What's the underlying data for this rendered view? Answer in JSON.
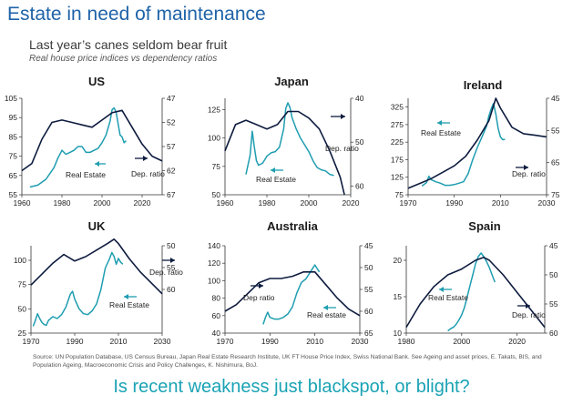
{
  "header": {
    "headline": "Estate in need of maintenance",
    "subtitle": "Last year’s canes seldom bear fruit",
    "subsubtitle": "Real house price indices vs dependency ratios"
  },
  "colors": {
    "real_estate": "#1e9db0",
    "dep_ratio": "#0d1b3e",
    "headline": "#1f63a8",
    "bottom": "#1aa3b5"
  },
  "chart_data": [
    {
      "type": "line",
      "title": "US",
      "xlim": [
        1960,
        2030
      ],
      "xticks": [
        "1960",
        "1980",
        "2000",
        "2020"
      ],
      "ylim_left": [
        55,
        105
      ],
      "yticks_left": [
        "55",
        "65",
        "75",
        "85",
        "95",
        "105"
      ],
      "ylim_right": [
        47,
        67
      ],
      "yticks_right": [
        "47",
        "52",
        "57",
        "62",
        "67"
      ],
      "series": [
        {
          "name": "Real Estate",
          "axis": "left",
          "color": "#1e9db0",
          "x": [
            1964,
            1968,
            1972,
            1974,
            1976,
            1978,
            1980,
            1982,
            1984,
            1986,
            1988,
            1990,
            1992,
            1994,
            1996,
            1998,
            2000,
            2002,
            2004,
            2005,
            2006,
            2007,
            2008,
            2009,
            2010,
            2011,
            2012
          ],
          "y": [
            59,
            60,
            63,
            66,
            69,
            74,
            78,
            76,
            77,
            78,
            80,
            80,
            77,
            77,
            78,
            79,
            82,
            86,
            93,
            99,
            100,
            98,
            92,
            86,
            85,
            82,
            83
          ]
        },
        {
          "name": "Dep. ratio",
          "axis": "right",
          "color": "#0d1b3e",
          "x": [
            1960,
            1965,
            1970,
            1975,
            1980,
            1985,
            1990,
            1995,
            2000,
            2005,
            2010,
            2015,
            2020,
            2025,
            2030
          ],
          "y": [
            62,
            60.5,
            55.5,
            52,
            51.5,
            52,
            52.5,
            53,
            51.5,
            50,
            49.5,
            53,
            56.5,
            59,
            60
          ]
        }
      ],
      "labels": [
        "Real Estate",
        "Dep. ratio"
      ]
    },
    {
      "type": "line",
      "title": "Japan",
      "xlim": [
        1960,
        2020
      ],
      "xticks": [
        "1960",
        "1980",
        "2000",
        "2020"
      ],
      "ylim_left": [
        50,
        135
      ],
      "yticks_left": [
        "50",
        "75",
        "100",
        "125"
      ],
      "ylim_right": [
        40,
        62
      ],
      "yticks_right": [
        "40",
        "50",
        "60"
      ],
      "series": [
        {
          "name": "Real Estate",
          "axis": "left",
          "color": "#1e9db0",
          "x": [
            1970,
            1972,
            1973,
            1974,
            1975,
            1976,
            1978,
            1980,
            1982,
            1984,
            1986,
            1988,
            1989,
            1990,
            1991,
            1992,
            1994,
            1996,
            1998,
            2000,
            2002,
            2004,
            2006,
            2008,
            2010,
            2012
          ],
          "y": [
            68,
            85,
            106,
            92,
            80,
            76,
            78,
            84,
            87,
            88,
            92,
            108,
            126,
            131,
            127,
            118,
            108,
            100,
            94,
            88,
            80,
            74,
            72,
            71,
            68,
            67
          ]
        },
        {
          "name": "Dep. ratio",
          "axis": "right",
          "color": "#0d1b3e",
          "x": [
            1960,
            1965,
            1970,
            1975,
            1980,
            1985,
            1990,
            1995,
            2000,
            2005,
            2010,
            2015,
            2017
          ],
          "y": [
            52,
            46,
            45,
            46,
            47,
            46,
            43,
            43,
            44.5,
            47,
            52,
            58,
            62
          ]
        }
      ],
      "labels": [
        "Real Estate",
        "Dep. ratio"
      ]
    },
    {
      "type": "line",
      "title": "Ireland",
      "xlim": [
        1970,
        2030
      ],
      "xticks": [
        "1970",
        "1990",
        "2010",
        "2030"
      ],
      "ylim_left": [
        75,
        350
      ],
      "yticks_left": [
        "75",
        "125",
        "175",
        "225",
        "275",
        "325"
      ],
      "ylim_right": [
        45,
        75
      ],
      "yticks_right": [
        "45",
        "55",
        "65",
        "75"
      ],
      "series": [
        {
          "name": "Real Estate",
          "axis": "left",
          "color": "#1e9db0",
          "x": [
            1976,
            1978,
            1979,
            1980,
            1982,
            1984,
            1986,
            1988,
            1990,
            1992,
            1994,
            1996,
            1998,
            2000,
            2002,
            2004,
            2005,
            2006,
            2007,
            2008,
            2009,
            2010,
            2011,
            2012
          ],
          "y": [
            100,
            110,
            128,
            118,
            112,
            108,
            102,
            102,
            104,
            108,
            112,
            135,
            175,
            210,
            240,
            270,
            300,
            320,
            335,
            305,
            265,
            240,
            232,
            233
          ]
        },
        {
          "name": "Dep. ratio",
          "axis": "right",
          "color": "#0d1b3e",
          "x": [
            1970,
            1975,
            1980,
            1985,
            1990,
            1995,
            2000,
            2005,
            2008,
            2010,
            2015,
            2020,
            2025,
            2030
          ],
          "y": [
            73,
            71.5,
            70,
            68,
            66,
            63,
            58,
            52,
            45,
            48,
            54,
            56,
            56.5,
            57
          ]
        }
      ],
      "labels": [
        "Real Estate",
        "Dep. ratio"
      ]
    },
    {
      "type": "line",
      "title": "UK",
      "xlim": [
        1970,
        2030
      ],
      "xticks": [
        "1970",
        "1990",
        "2010",
        "2030"
      ],
      "ylim_left": [
        25,
        115
      ],
      "yticks_left": [
        "25",
        "50",
        "75",
        "100"
      ],
      "ylim_right": [
        50,
        70
      ],
      "yticks_right": [
        "50",
        "55",
        "60"
      ],
      "series": [
        {
          "name": "Real Estate",
          "axis": "left",
          "color": "#1e9db0",
          "x": [
            1971,
            1972,
            1973,
            1974,
            1975,
            1976,
            1977,
            1978,
            1980,
            1982,
            1984,
            1986,
            1988,
            1989,
            1990,
            1992,
            1994,
            1996,
            1998,
            2000,
            2002,
            2004,
            2006,
            2007,
            2008,
            2009,
            2010,
            2011,
            2012
          ],
          "y": [
            32,
            38,
            45,
            40,
            36,
            34,
            33,
            38,
            42,
            40,
            44,
            52,
            65,
            68,
            60,
            50,
            45,
            44,
            48,
            55,
            70,
            92,
            102,
            108,
            104,
            96,
            102,
            98,
            96
          ]
        },
        {
          "name": "Dep. ratio",
          "axis": "right",
          "color": "#0d1b3e",
          "x": [
            1970,
            1975,
            1980,
            1985,
            1990,
            1995,
            2000,
            2005,
            2008,
            2010,
            2015,
            2020,
            2025,
            2030
          ],
          "y": [
            59,
            56.5,
            54,
            52,
            53.5,
            52.5,
            51,
            49.5,
            48.5,
            49.5,
            53,
            56,
            58.5,
            61
          ]
        }
      ],
      "labels": [
        "Dep. ratio",
        "Real Estate"
      ]
    },
    {
      "type": "line",
      "title": "Australia",
      "xlim": [
        1970,
        2030
      ],
      "xticks": [
        "1970",
        "1990",
        "2010",
        "2030"
      ],
      "ylim_left": [
        40,
        140
      ],
      "yticks_left": [
        "40",
        "60",
        "80",
        "100",
        "120",
        "140"
      ],
      "ylim_right": [
        45,
        65
      ],
      "yticks_right": [
        "45",
        "50",
        "55",
        "60",
        "65"
      ],
      "series": [
        {
          "name": "Real estate",
          "axis": "left",
          "color": "#1e9db0",
          "x": [
            1987,
            1988,
            1989,
            1990,
            1992,
            1994,
            1996,
            1998,
            2000,
            2002,
            2003,
            2004,
            2006,
            2008,
            2010,
            2011,
            2012
          ],
          "y": [
            50,
            58,
            64,
            58,
            56,
            56,
            58,
            62,
            70,
            86,
            92,
            98,
            102,
            110,
            118,
            114,
            110
          ]
        },
        {
          "name": "Dep ratio",
          "axis": "right",
          "color": "#0d1b3e",
          "x": [
            1970,
            1975,
            1980,
            1985,
            1990,
            1995,
            2000,
            2005,
            2008,
            2010,
            2015,
            2020,
            2025,
            2030
          ],
          "y": [
            60,
            58.5,
            56,
            53.5,
            52.5,
            52.5,
            52,
            51,
            51,
            51,
            54,
            57,
            59.5,
            61
          ]
        }
      ],
      "labels": [
        "Dep ratio",
        "Real estate"
      ]
    },
    {
      "type": "line",
      "title": "Spain",
      "xlim": [
        1980,
        2030
      ],
      "xticks": [
        "1980",
        "2000",
        "2020"
      ],
      "ylim_left": [
        10,
        22
      ],
      "yticks_left": [
        "10",
        "15",
        "20"
      ],
      "ylim_right": [
        45,
        60
      ],
      "yticks_right": [
        "45",
        "50",
        "55",
        "60"
      ],
      "series": [
        {
          "name": "Real Estate",
          "axis": "left",
          "color": "#1e9db0",
          "x": [
            1995,
            1996,
            1997,
            1998,
            1999,
            2000,
            2001,
            2002,
            2003,
            2004,
            2005,
            2006,
            2007,
            2008,
            2009,
            2010,
            2011,
            2012
          ],
          "y": [
            10.3,
            10.6,
            10.8,
            11.2,
            11.8,
            12.5,
            13.5,
            15,
            16.5,
            18,
            19.5,
            20.5,
            21,
            20.5,
            19.8,
            19,
            18,
            17
          ]
        },
        {
          "name": "Dep. ratio",
          "axis": "right",
          "color": "#0d1b3e",
          "x": [
            1980,
            1985,
            1990,
            1995,
            2000,
            2005,
            2008,
            2010,
            2015,
            2020,
            2025,
            2030
          ],
          "y": [
            59,
            55,
            52,
            50,
            49,
            47.5,
            47,
            47.5,
            50,
            53,
            56,
            59
          ]
        }
      ],
      "labels": [
        "Real Estate",
        "Dep. ratio"
      ]
    }
  ],
  "source_lines": [
    "Source: UN Population Database, US Census Bureau, Japan Real Estate Research Institute, UK FT House Price Index, Swiss National Bank. See Ageing and asset prices, E. Takats, BIS, and",
    "Population Ageing, Macroeconomic Crisis and Policy Challenges, K. Nishimura, BoJ."
  ],
  "footer": {
    "question": "Is recent weakness just blackspot, or blight?"
  }
}
